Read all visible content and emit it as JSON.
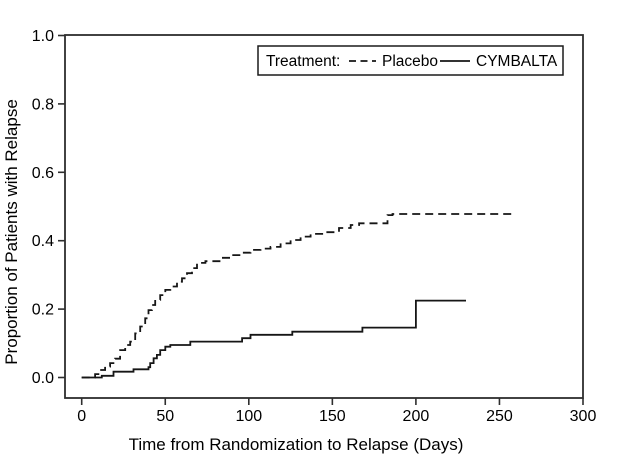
{
  "figure": {
    "background": "#ffffff",
    "axis_color": "#2e2e2e",
    "curve_color": "#161616",
    "text_color": "#000000"
  },
  "chart_data": {
    "type": "line",
    "variant": "kaplan-meier-step",
    "title": "",
    "xlabel": "Time from Randomization to Relapse (Days)",
    "ylabel": "Proportion of Patients with Relapse",
    "xlim": [
      -10,
      300
    ],
    "ylim": [
      0.0,
      1.0
    ],
    "xticks": [
      0,
      50,
      100,
      150,
      200,
      250,
      300
    ],
    "ytick_labels": [
      "0.0",
      "0.2",
      "0.4",
      "0.6",
      "0.8",
      "1.0"
    ],
    "grid": false,
    "legend": {
      "title": "Treatment:",
      "position": "top-right-inside",
      "entries": [
        {
          "label": "Placebo",
          "line_style": "dashed"
        },
        {
          "label": "CYMBALTA",
          "line_style": "solid"
        }
      ]
    },
    "series": [
      {
        "name": "Placebo",
        "line_style": "dashed",
        "color": "#161616",
        "end_day": 260,
        "steps": [
          [
            0,
            0.0
          ],
          [
            8,
            0.01
          ],
          [
            11,
            0.022
          ],
          [
            14,
            0.032
          ],
          [
            17,
            0.042
          ],
          [
            20,
            0.055
          ],
          [
            23,
            0.08
          ],
          [
            26,
            0.095
          ],
          [
            29,
            0.105
          ],
          [
            32,
            0.129
          ],
          [
            35,
            0.149
          ],
          [
            38,
            0.173
          ],
          [
            40,
            0.197
          ],
          [
            42,
            0.212
          ],
          [
            44,
            0.227
          ],
          [
            47,
            0.241
          ],
          [
            50,
            0.256
          ],
          [
            53,
            0.266
          ],
          [
            57,
            0.28
          ],
          [
            60,
            0.29
          ],
          [
            63,
            0.305
          ],
          [
            66,
            0.32
          ],
          [
            69,
            0.335
          ],
          [
            74,
            0.34
          ],
          [
            83,
            0.35
          ],
          [
            89,
            0.358
          ],
          [
            95,
            0.365
          ],
          [
            101,
            0.373
          ],
          [
            107,
            0.377
          ],
          [
            113,
            0.382
          ],
          [
            119,
            0.392
          ],
          [
            125,
            0.402
          ],
          [
            131,
            0.412
          ],
          [
            137,
            0.42
          ],
          [
            145,
            0.425
          ],
          [
            154,
            0.437
          ],
          [
            161,
            0.446
          ],
          [
            166,
            0.451
          ],
          [
            183,
            0.475
          ],
          [
            186,
            0.478
          ]
        ]
      },
      {
        "name": "CYMBALTA",
        "line_style": "solid",
        "color": "#161616",
        "end_day": 230,
        "steps": [
          [
            0,
            0.0
          ],
          [
            12,
            0.005
          ],
          [
            19,
            0.017
          ],
          [
            31,
            0.024
          ],
          [
            40,
            0.03
          ],
          [
            41,
            0.042
          ],
          [
            43,
            0.056
          ],
          [
            45,
            0.066
          ],
          [
            47,
            0.08
          ],
          [
            50,
            0.09
          ],
          [
            53,
            0.095
          ],
          [
            65,
            0.105
          ],
          [
            96,
            0.115
          ],
          [
            101,
            0.125
          ],
          [
            126,
            0.134
          ],
          [
            168,
            0.146
          ],
          [
            200,
            0.225
          ]
        ]
      }
    ]
  }
}
